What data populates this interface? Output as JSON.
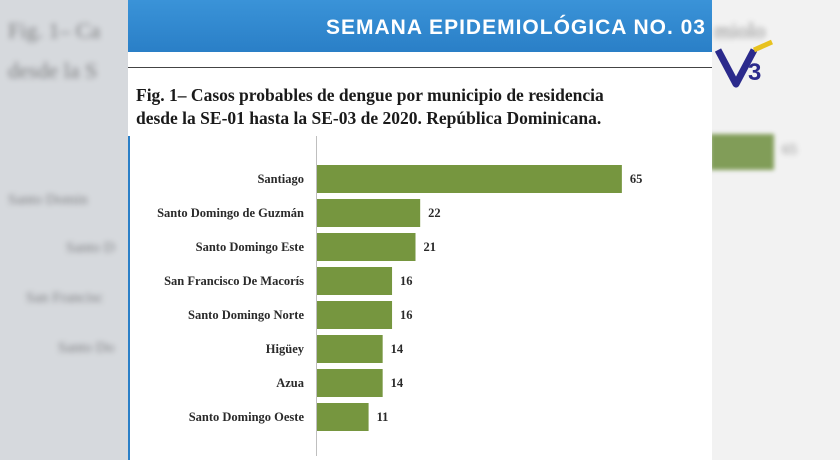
{
  "banner": {
    "title": "SEMANA EPIDEMIOLÓGICA NO. 03"
  },
  "caption": {
    "line1": "Fig. 1– Casos probables de dengue por municipio de residencia",
    "line2": "desde la SE-01 hasta la SE-03 de 2020. República Dominicana."
  },
  "colors": {
    "bar": "#76963f",
    "banner": "#2a7fc7"
  },
  "logo": {
    "text": "V3",
    "icon": "channel-logo-icon"
  },
  "chart_data": {
    "type": "bar",
    "orientation": "horizontal",
    "categories": [
      "Santiago",
      "Santo Domingo de Guzmán",
      "Santo Domingo Este",
      "San Francisco De Macorís",
      "Santo Domingo Norte",
      "Higüey",
      "Azua",
      "Santo Domingo Oeste"
    ],
    "values": [
      65,
      22,
      21,
      16,
      16,
      14,
      14,
      11
    ],
    "title": "Fig. 1– Casos probables de dengue por municipio de residencia desde la SE-01 hasta la SE-03 de 2020. República Dominicana.",
    "xlim": [
      0,
      70
    ],
    "grid": false,
    "data_labels": true
  }
}
